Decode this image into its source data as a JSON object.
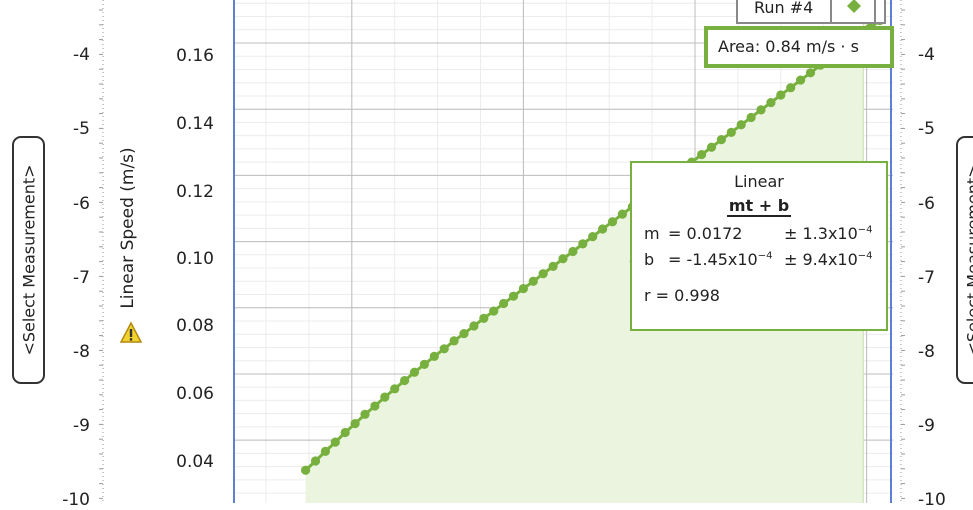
{
  "left_axis": {
    "ticks": [
      "-4",
      "-5",
      "-6",
      "-7",
      "-8",
      "-9",
      "-10"
    ],
    "select_label": "<Select Measurement>"
  },
  "right_axis": {
    "ticks": [
      "-4",
      "-5",
      "-6",
      "-7",
      "-8",
      "-9",
      "-10"
    ],
    "select_label": "<Select Measurement>"
  },
  "warning_icon": "warning-triangle",
  "legend": {
    "run_label": "Run #4",
    "marker": "diamond",
    "color": "#77b03e"
  },
  "area": {
    "text": "Area: 0.84 m/s · s"
  },
  "fit": {
    "title": "Linear",
    "equation": "mt + b",
    "m_label": "m",
    "m_value": "= 0.0172",
    "m_error": "± 1.3x10",
    "m_error_exp": "−4",
    "b_label": "b",
    "b_value": "= -1.45x10",
    "b_value_exp": "−4",
    "b_error": "± 9.4x10",
    "b_error_exp": "−4",
    "r_text": "r = 0.998"
  },
  "colors": {
    "series": "#77b03e",
    "fill": "#eaf4de",
    "frame": "#5f7fd6",
    "grid": "#bdbdbd"
  },
  "chart_data": {
    "type": "scatter",
    "ylabel": "Linear Speed (m/s)",
    "yticks": [
      "0.16",
      "0.14",
      "0.12",
      "0.10",
      "0.08",
      "0.06",
      "0.04"
    ],
    "ylim": [
      0.021,
      0.173
    ],
    "xlim": [
      0,
      100
    ],
    "x_ticks": [
      18,
      44,
      70,
      96
    ],
    "grid": true,
    "shaded_area": true,
    "series": [
      {
        "x": [
          11.0,
          12.5,
          14.0,
          15.5,
          17.0,
          18.5,
          20.0,
          21.5,
          23.0,
          24.5,
          26.0,
          27.5,
          29.0,
          30.5,
          32.0,
          33.5,
          35.0,
          36.5,
          38.0,
          39.5,
          41.0,
          42.5,
          44.0,
          45.5,
          47.0,
          48.5,
          50.0,
          51.5,
          53.0,
          54.5,
          56.0,
          57.5,
          59.0,
          60.5,
          62.0,
          63.5,
          65.0,
          66.5,
          68.0,
          69.5,
          71.0,
          72.5,
          74.0,
          75.5,
          77.0,
          78.5,
          80.0,
          81.5,
          83.0,
          84.5,
          86.0,
          87.5,
          89.0,
          90.5,
          92.0,
          93.5,
          95.0,
          96.5,
          98.0
        ],
        "values": [
          0.0309,
          0.0337,
          0.0366,
          0.0394,
          0.0423,
          0.045,
          0.0478,
          0.0503,
          0.053,
          0.0555,
          0.058,
          0.0605,
          0.0629,
          0.0653,
          0.0676,
          0.07,
          0.0722,
          0.0745,
          0.0768,
          0.079,
          0.0813,
          0.0835,
          0.0858,
          0.088,
          0.0903,
          0.0925,
          0.0948,
          0.097,
          0.0993,
          0.1015,
          0.1038,
          0.106,
          0.1083,
          0.1105,
          0.1128,
          0.115,
          0.1173,
          0.1195,
          0.1218,
          0.124,
          0.1263,
          0.1285,
          0.1308,
          0.133,
          0.1353,
          0.1375,
          0.1398,
          0.142,
          0.1443,
          0.1465,
          0.1488,
          0.151,
          0.1533,
          0.1555,
          0.1578,
          0.16,
          0.1623,
          0.1645,
          0.1668
        ]
      }
    ]
  }
}
